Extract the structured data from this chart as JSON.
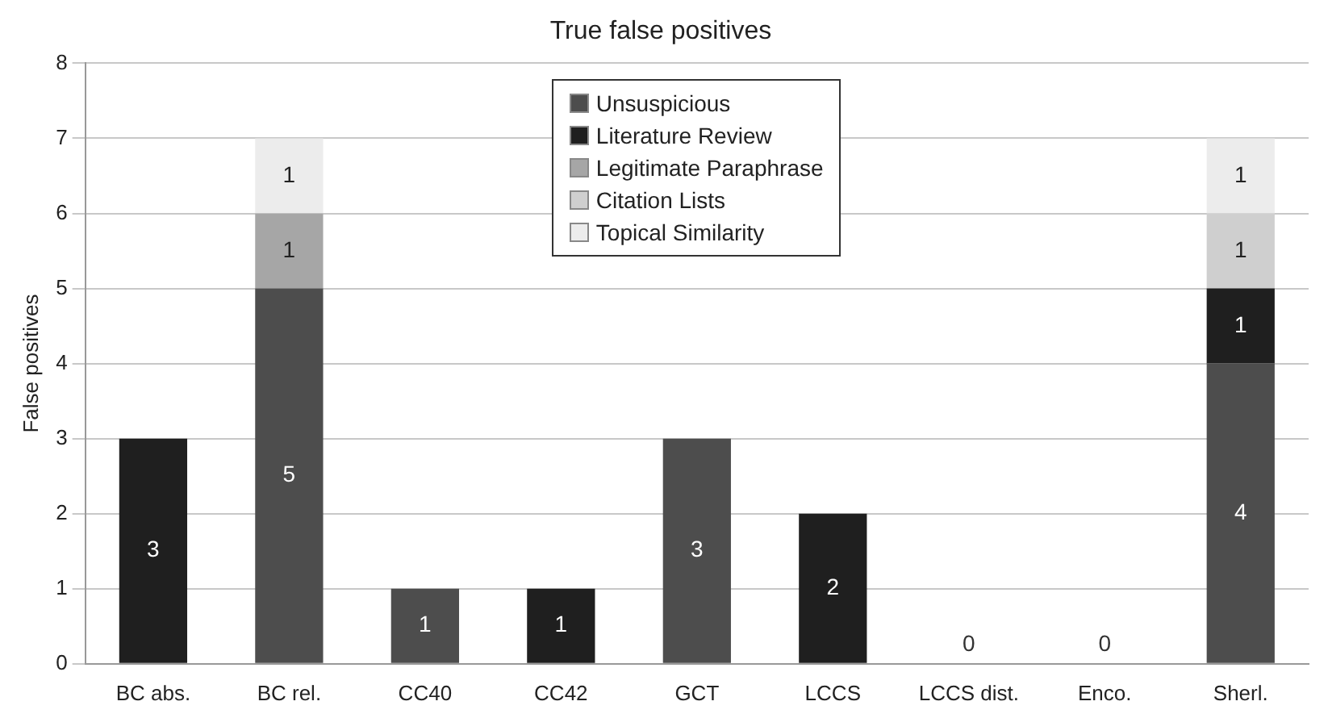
{
  "chart_data": {
    "type": "bar",
    "title": "True false positives",
    "ylabel": "False positives",
    "categories": [
      "BC abs.",
      "BC rel.",
      "CC40",
      "CC42",
      "GCT",
      "LCCS",
      "LCCS dist.",
      "Enco.",
      "Sherl."
    ],
    "stacked": true,
    "data_labels": true,
    "series": [
      {
        "name": "Unsuspicious",
        "color": "#4d4d4d",
        "values": [
          null,
          5,
          1,
          null,
          3,
          null,
          0,
          0,
          4
        ]
      },
      {
        "name": "Literature Review",
        "color": "#1f1f1f",
        "values": [
          3,
          null,
          null,
          1,
          null,
          2,
          null,
          null,
          1
        ]
      },
      {
        "name": "Legitimate Paraphrase",
        "color": "#a6a6a6",
        "values": [
          null,
          1,
          null,
          null,
          null,
          null,
          null,
          null,
          null
        ]
      },
      {
        "name": "Citation Lists",
        "color": "#cfcfcf",
        "values": [
          null,
          null,
          null,
          null,
          null,
          null,
          null,
          null,
          1
        ]
      },
      {
        "name": "Topical Similarity",
        "color": "#ececec",
        "values": [
          null,
          1,
          null,
          null,
          null,
          null,
          null,
          null,
          1
        ]
      }
    ],
    "ylim": [
      0,
      8
    ],
    "yticks": [
      0,
      1,
      2,
      3,
      4,
      5,
      6,
      7,
      8
    ],
    "grid": "y",
    "legend": "top"
  }
}
